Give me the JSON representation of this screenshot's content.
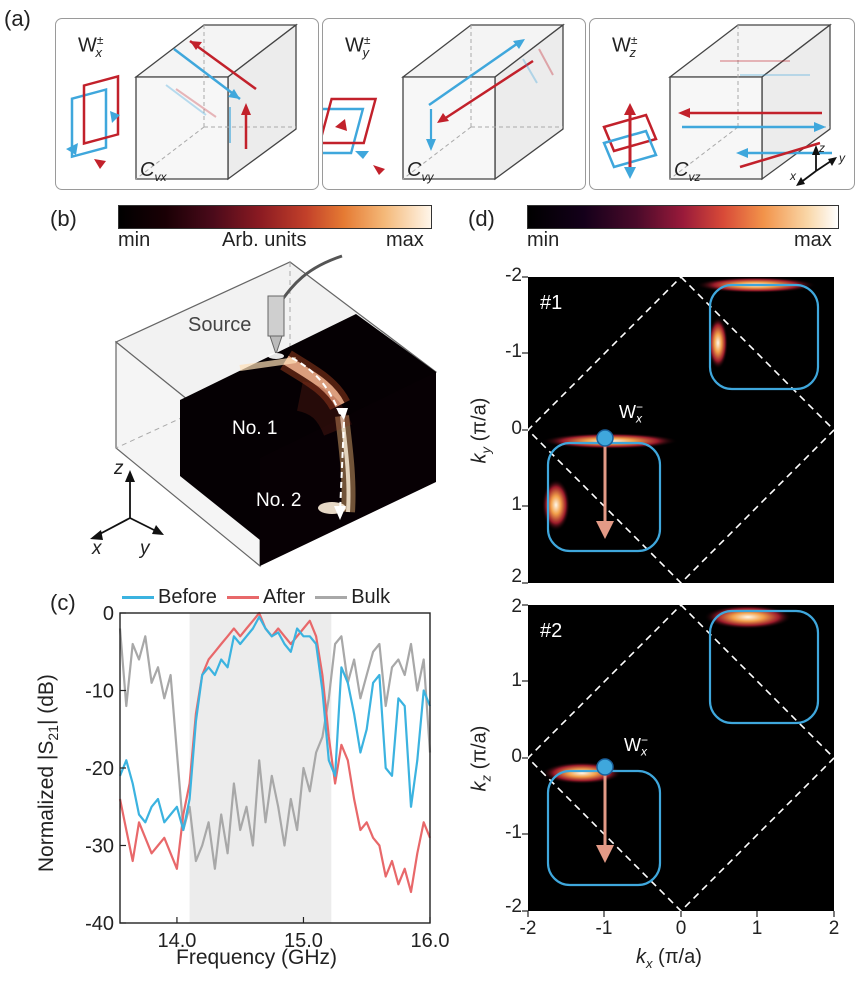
{
  "panel_labels": {
    "a": "(a)",
    "b": "(b)",
    "c": "(c)",
    "d": "(d)"
  },
  "panel_a": {
    "boxes": [
      {
        "wlabel": "W",
        "sup": "±",
        "sub": "x",
        "clabel": "C",
        "csub": "vx"
      },
      {
        "wlabel": "W",
        "sup": "±",
        "sub": "y",
        "clabel": "C",
        "csub": "vy"
      },
      {
        "wlabel": "W",
        "sup": "±",
        "sub": "z",
        "clabel": "C",
        "csub": "vz"
      }
    ],
    "axes": {
      "x": "x",
      "y": "y",
      "z": "z"
    }
  },
  "panel_b": {
    "colorbar": {
      "min": "min",
      "mid": "Arb. units",
      "max": "max"
    },
    "source": "Source",
    "layer1": "No. 1",
    "layer2": "No. 2",
    "axes": {
      "x": "x",
      "y": "y",
      "z": "z"
    }
  },
  "panel_d": {
    "colorbar": {
      "min": "min",
      "max": "max"
    },
    "plot1": {
      "tag": "#1",
      "ylabel_main": "k",
      "ylabel_sub": "y",
      "ylabel_unit": " (π/a)",
      "yticks": [
        "-2",
        "-1",
        "0",
        "1",
        "2"
      ],
      "marker": {
        "main": "W",
        "sub": "x",
        "sup": "−"
      }
    },
    "plot2": {
      "tag": "#2",
      "ylabel_main": "k",
      "ylabel_sub": "z",
      "ylabel_unit": " (π/a)",
      "yticks": [
        "2",
        "1",
        "0",
        "-1",
        "-2"
      ],
      "marker": {
        "main": "W",
        "sub": "x",
        "sup": "−"
      }
    },
    "xlabel_main": "k",
    "xlabel_sub": "x",
    "xlabel_unit": " (π/a)",
    "xticks": [
      "-2",
      "-1",
      "0",
      "1",
      "2"
    ]
  },
  "colors": {
    "before": "#3bb3e0",
    "after": "#e8686a",
    "bulk": "#a8a8a8",
    "blue_edge": "#3fa7dc",
    "red_edge": "#c2212b",
    "arrow": "#e39a86"
  },
  "chart_data": {
    "type": "line",
    "title": "",
    "xlabel": "Frequency (GHz)",
    "ylabel": "Normalized |S21| (dB)",
    "ylabel_main": "Normalized |S",
    "ylabel_sub": "21",
    "ylabel_tail": "| (dB)",
    "xlim": [
      13.55,
      16.0
    ],
    "ylim": [
      -40,
      0
    ],
    "xticks": [
      14.0,
      15.0,
      16.0
    ],
    "xtick_labels": [
      "14.0",
      "15.0",
      "16.0"
    ],
    "yticks": [
      0,
      -10,
      -20,
      -30,
      -40
    ],
    "ytick_labels": [
      "0",
      "-10",
      "-20",
      "-30",
      "-40"
    ],
    "shaded_band": [
      14.1,
      15.22
    ],
    "legend": [
      "Before",
      "After",
      "Bulk"
    ],
    "series": [
      {
        "name": "Before",
        "x": [
          13.55,
          13.6,
          13.65,
          13.7,
          13.75,
          13.8,
          13.85,
          13.9,
          13.95,
          14.0,
          14.05,
          14.1,
          14.15,
          14.2,
          14.25,
          14.3,
          14.35,
          14.4,
          14.45,
          14.5,
          14.55,
          14.6,
          14.65,
          14.7,
          14.75,
          14.8,
          14.85,
          14.9,
          14.95,
          15.0,
          15.05,
          15.1,
          15.15,
          15.2,
          15.25,
          15.3,
          15.35,
          15.4,
          15.45,
          15.5,
          15.55,
          15.6,
          15.65,
          15.7,
          15.75,
          15.8,
          15.85,
          15.9,
          15.95,
          16.0
        ],
        "values": [
          -21,
          -19,
          -22,
          -26,
          -27,
          -25,
          -24,
          -27,
          -26,
          -25,
          -28,
          -24,
          -14,
          -8,
          -7,
          -8,
          -6,
          -7,
          -3,
          -4,
          -3,
          -2,
          -0.5,
          -2,
          -3,
          -2.5,
          -4,
          -5,
          -2,
          -3,
          -3,
          -4,
          -10,
          -19,
          -21,
          -7,
          -9,
          -13,
          -18,
          -15,
          -9,
          -8,
          -20,
          -21,
          -11,
          -12,
          -25,
          -19,
          -10,
          -12
        ]
      },
      {
        "name": "After",
        "x": [
          13.55,
          13.6,
          13.65,
          13.7,
          13.75,
          13.8,
          13.85,
          13.9,
          13.95,
          14.0,
          14.05,
          14.1,
          14.15,
          14.2,
          14.25,
          14.3,
          14.35,
          14.4,
          14.45,
          14.5,
          14.55,
          14.6,
          14.65,
          14.7,
          14.75,
          14.8,
          14.85,
          14.9,
          14.95,
          15.0,
          15.05,
          15.1,
          15.15,
          15.2,
          15.25,
          15.3,
          15.35,
          15.4,
          15.45,
          15.5,
          15.55,
          15.6,
          15.65,
          15.7,
          15.75,
          15.8,
          15.85,
          15.9,
          15.95,
          16.0
        ],
        "values": [
          -24,
          -28,
          -32,
          -27,
          -29,
          -31,
          -30,
          -29,
          -31,
          -33,
          -26,
          -22,
          -13,
          -8,
          -6,
          -5,
          -4,
          -3,
          -2,
          -3,
          -2,
          -1,
          0,
          -2,
          -3,
          -2,
          -3,
          -4,
          -3,
          -2,
          -1,
          -3,
          -8,
          -16,
          -22,
          -17,
          -19,
          -24,
          -28,
          -27,
          -29,
          -30,
          -34,
          -32,
          -35,
          -33,
          -36,
          -31,
          -27,
          -29
        ]
      },
      {
        "name": "Bulk",
        "x": [
          13.55,
          13.6,
          13.65,
          13.7,
          13.75,
          13.8,
          13.85,
          13.9,
          13.95,
          14.0,
          14.05,
          14.1,
          14.15,
          14.2,
          14.25,
          14.3,
          14.35,
          14.4,
          14.45,
          14.5,
          14.55,
          14.6,
          14.65,
          14.7,
          14.75,
          14.8,
          14.85,
          14.9,
          14.95,
          15.0,
          15.05,
          15.1,
          15.15,
          15.2,
          15.25,
          15.3,
          15.35,
          15.4,
          15.45,
          15.5,
          15.55,
          15.6,
          15.65,
          15.7,
          15.75,
          15.8,
          15.85,
          15.9,
          15.95,
          16.0
        ],
        "values": [
          -2,
          -12,
          -4,
          -6,
          -3,
          -9,
          -7,
          -11,
          -8,
          -18,
          -28,
          -25,
          -32,
          -30,
          -27,
          -33,
          -26,
          -31,
          -22,
          -28,
          -25,
          -30,
          -19,
          -27,
          -21,
          -25,
          -30,
          -24,
          -28,
          -20,
          -23,
          -18,
          -16,
          -11,
          -4,
          -3,
          -9,
          -6,
          -11,
          -8,
          -5,
          -4,
          -12,
          -7,
          -6,
          -8,
          -4,
          -10,
          -6,
          -18
        ]
      }
    ]
  }
}
